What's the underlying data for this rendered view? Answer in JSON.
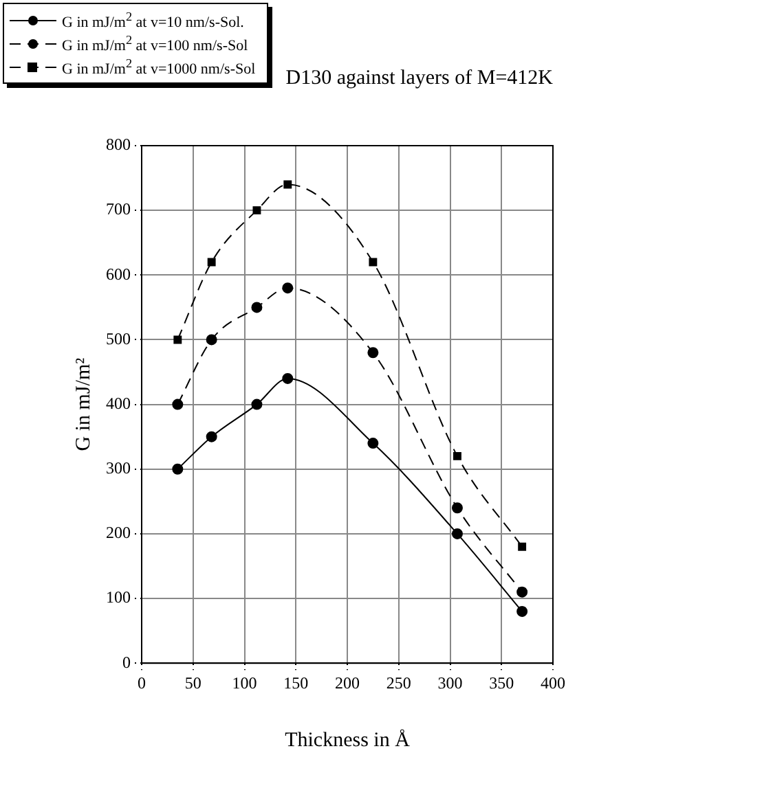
{
  "chart_data": {
    "type": "line",
    "title": "D130 against layers of M=412K",
    "xlabel": "Thickness in Å",
    "ylabel": "G in mJ/m²",
    "x": [
      35,
      68,
      112,
      142,
      225,
      307,
      370
    ],
    "series": [
      {
        "name": "G in mJ/m$^{2}$ at v=10 nm/s-Sol.",
        "color": "#000000",
        "marker": "circle",
        "line_style": "solid",
        "values": [
          300,
          350,
          400,
          440,
          340,
          200,
          80
        ]
      },
      {
        "name": "G in mJ/m$^{2}$ at v=100 nm/s-Sol",
        "color": "#000000",
        "marker": "circle",
        "line_style": "dashed",
        "values": [
          400,
          500,
          550,
          580,
          480,
          240,
          110
        ]
      },
      {
        "name": "G in mJ/m$^{2}$ at v=1000 nm/s-Sol",
        "color": "#000000",
        "marker": "square",
        "line_style": "dashed",
        "values": [
          500,
          620,
          700,
          740,
          620,
          320,
          180
        ]
      }
    ],
    "xlim": [
      0,
      400
    ],
    "xticks": [
      0,
      50,
      100,
      150,
      200,
      250,
      300,
      350,
      400
    ],
    "ylim": [
      0,
      800
    ],
    "yticks": [
      0,
      100,
      200,
      300,
      400,
      500,
      600,
      700,
      800
    ],
    "grid": true,
    "legend": "top left"
  }
}
